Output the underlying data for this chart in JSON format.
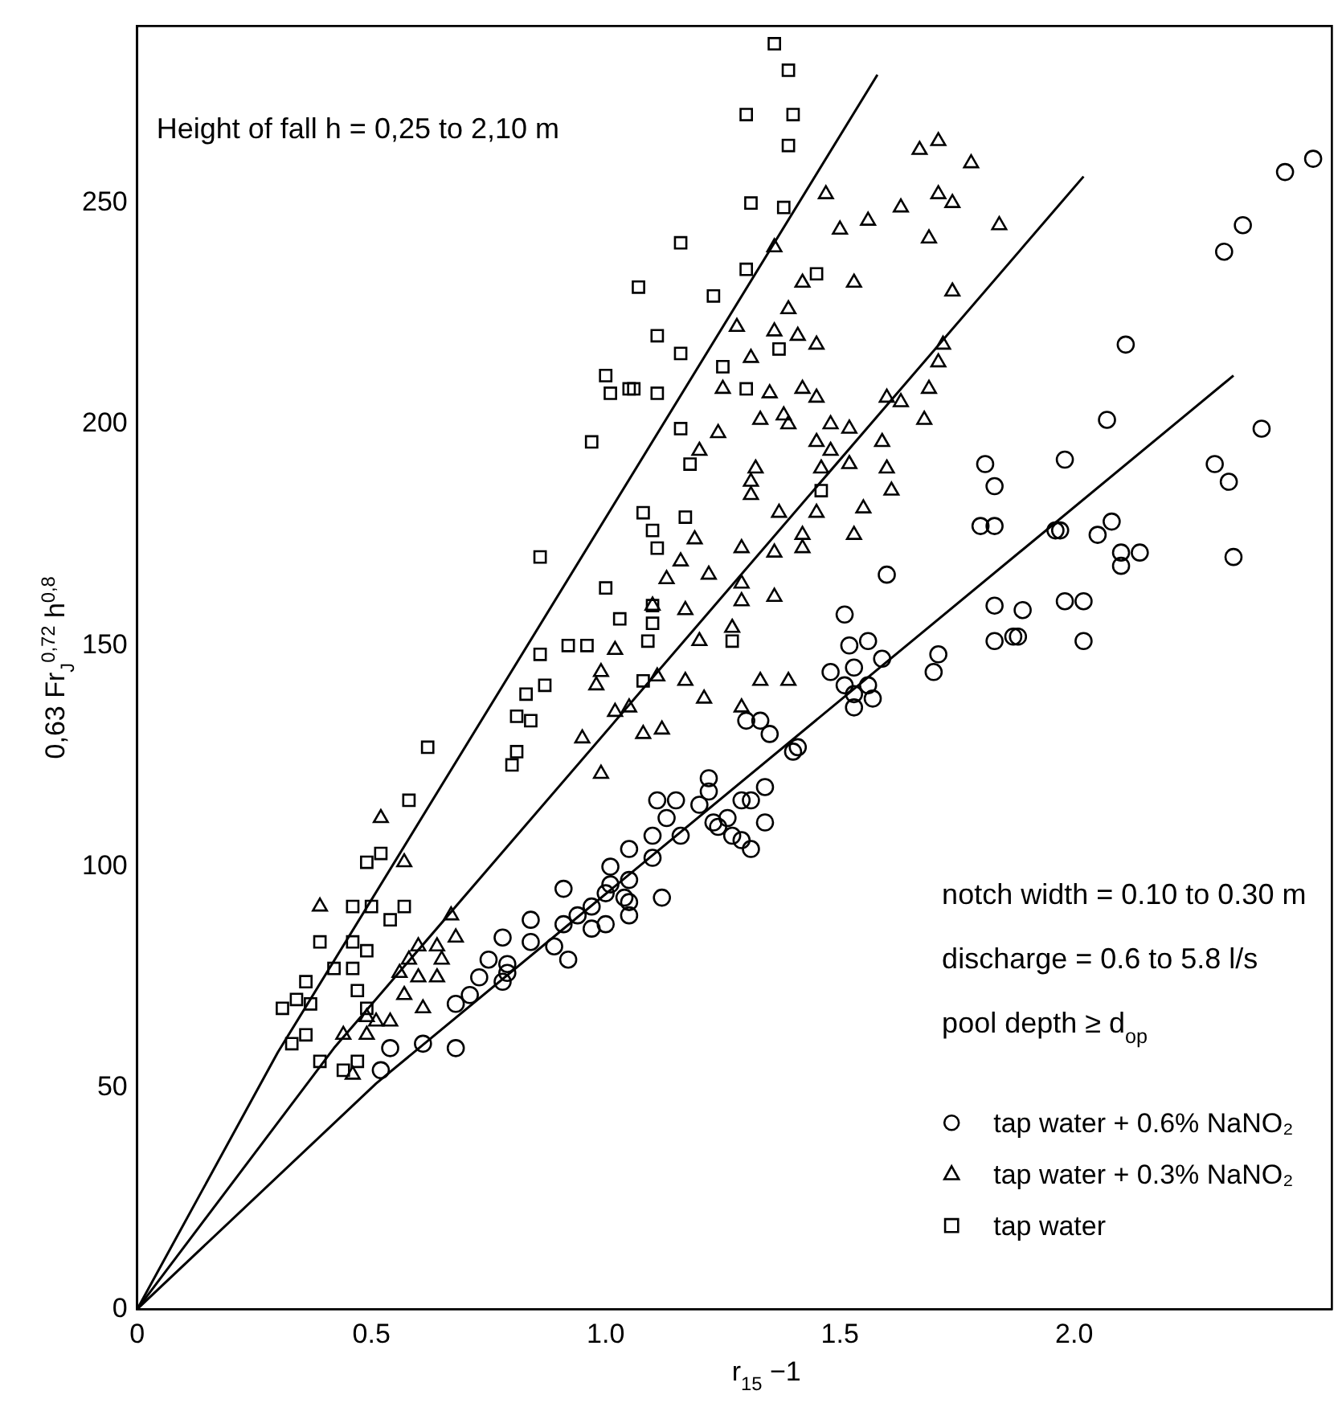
{
  "chart_data": {
    "type": "scatter",
    "xlabel": "r$_{15}$ −1",
    "ylabel": "0,63 Fr$_{J}$$^{0,72}$ h$^{0,8}$",
    "xlim": [
      0,
      2.55
    ],
    "xticks": [
      0,
      0.5,
      {
        "value": 1,
        "label": "1.0"
      },
      1.5,
      {
        "value": 2,
        "label": "2.0"
      }
    ],
    "ylim": [
      0,
      290
    ],
    "yticks": [
      0,
      50,
      100,
      150,
      200,
      250
    ],
    "grid": false,
    "legend": "bottom right",
    "annotations": [
      "Height of fall h = 0,25 to 2,10 m",
      "notch width = 0.10 to 0.30 m",
      "discharge = 0.6 to 5.8 l/s",
      "pool depth ≥ d$_{op}$"
    ],
    "series": [
      {
        "name": "tap water + 0.6% NaNO₂",
        "type": "scatter",
        "marker": "circle",
        "color": "#000000",
        "x": [
          2.51,
          2.45,
          2.36,
          2.32,
          2.11,
          2.07,
          1.98,
          2.4,
          2.3,
          2.33,
          1.97,
          2.08,
          2.05,
          2.1,
          2.14,
          2.1,
          2.34,
          1.98,
          2.02,
          2.02,
          1.89,
          1.88,
          1.81,
          1.83,
          1.8,
          1.83,
          1.96,
          1.6,
          1.83,
          1.87,
          1.83,
          1.51,
          1.52,
          1.56,
          1.59,
          1.71,
          1.7,
          1.48,
          1.53,
          1.51,
          1.56,
          1.53,
          1.57,
          1.53,
          1.3,
          1.33,
          1.35,
          1.41,
          1.4,
          1.22,
          1.22,
          1.11,
          1.15,
          1.2,
          1.29,
          1.31,
          1.34,
          1.1,
          1.16,
          1.23,
          1.26,
          1.34,
          1.29,
          1.13,
          1.31,
          1.27,
          1.24,
          1.12,
          1.05,
          1.1,
          1.05,
          1.01,
          1.0,
          1.05,
          1.01,
          1.05,
          0.91,
          1.0,
          1.04,
          0.97,
          0.94,
          0.97,
          0.84,
          0.91,
          0.84,
          0.89,
          0.78,
          0.92,
          0.75,
          0.79,
          0.73,
          0.78,
          0.79,
          0.71,
          0.68,
          0.61,
          0.68,
          0.54,
          0.52
        ],
        "values": [
          260,
          257,
          245,
          239,
          218,
          201,
          192,
          199,
          191,
          187,
          176,
          178,
          175,
          171,
          171,
          168,
          170,
          160,
          160,
          151,
          158,
          152,
          191,
          186,
          177,
          177,
          176,
          166,
          159,
          152,
          151,
          157,
          150,
          151,
          147,
          148,
          144,
          144,
          145,
          141,
          141,
          139,
          138,
          136,
          133,
          133,
          130,
          127,
          126,
          120,
          117,
          115,
          115,
          114,
          115,
          115,
          118,
          107,
          107,
          110,
          111,
          110,
          106,
          111,
          104,
          107,
          109,
          93,
          89,
          102,
          104,
          96,
          87,
          92,
          100,
          97,
          95,
          94,
          93,
          91,
          89,
          86,
          88,
          87,
          83,
          82,
          84,
          79,
          79,
          78,
          75,
          74,
          76,
          71,
          69,
          60,
          59,
          59,
          54
        ]
      },
      {
        "name": "tap water + 0.3% NaNO₂",
        "type": "scatter",
        "marker": "triangle",
        "color": "#000000",
        "x": [
          1.71,
          1.67,
          1.78,
          1.47,
          1.63,
          1.71,
          1.74,
          1.56,
          1.5,
          1.84,
          1.36,
          1.69,
          1.53,
          1.74,
          1.42,
          1.39,
          1.28,
          1.36,
          1.41,
          1.45,
          1.31,
          1.25,
          1.35,
          1.42,
          1.45,
          1.72,
          1.71,
          1.69,
          1.6,
          1.63,
          1.68,
          1.24,
          1.2,
          1.33,
          1.38,
          1.39,
          1.48,
          1.52,
          1.32,
          1.31,
          1.31,
          1.45,
          1.48,
          1.52,
          1.46,
          1.59,
          1.6,
          1.61,
          1.37,
          1.55,
          1.53,
          1.42,
          1.45,
          1.19,
          1.29,
          1.36,
          1.42,
          1.16,
          1.13,
          1.22,
          1.29,
          1.29,
          1.36,
          1.1,
          1.17,
          1.27,
          1.2,
          1.33,
          1.39,
          1.21,
          1.29,
          1.12,
          1.08,
          1.11,
          1.17,
          1.02,
          0.99,
          0.98,
          1.02,
          1.05,
          0.95,
          0.99,
          0.52,
          0.57,
          0.39,
          0.67,
          0.68,
          0.64,
          0.6,
          0.58,
          0.65,
          0.56,
          0.6,
          0.64,
          0.57,
          0.61,
          0.49,
          0.51,
          0.54,
          0.44,
          0.49,
          0.46
        ],
        "values": [
          264,
          262,
          259,
          252,
          249,
          252,
          250,
          246,
          244,
          245,
          240,
          242,
          232,
          230,
          232,
          226,
          222,
          221,
          220,
          218,
          215,
          208,
          207,
          208,
          206,
          218,
          214,
          208,
          206,
          205,
          201,
          198,
          194,
          201,
          202,
          200,
          200,
          199,
          190,
          187,
          184,
          196,
          194,
          191,
          190,
          196,
          190,
          185,
          180,
          181,
          175,
          175,
          180,
          174,
          172,
          171,
          172,
          169,
          165,
          166,
          164,
          160,
          161,
          159,
          158,
          154,
          151,
          142,
          142,
          138,
          136,
          131,
          130,
          143,
          142,
          149,
          144,
          141,
          135,
          136,
          129,
          121,
          111,
          101,
          91,
          89,
          84,
          82,
          82,
          79,
          79,
          76,
          75,
          75,
          71,
          68,
          66,
          65,
          65,
          62,
          62,
          53
        ]
      },
      {
        "name": "tap water",
        "type": "scatter",
        "marker": "square",
        "color": "#000000",
        "x": [
          1.36,
          1.39,
          1.3,
          1.4,
          1.39,
          1.31,
          1.38,
          1.16,
          1.3,
          1.07,
          1.23,
          1.45,
          1.11,
          1.16,
          1.25,
          1.06,
          1.11,
          1.3,
          1.37,
          1.16,
          1.18,
          1.08,
          1.17,
          1.1,
          1.11,
          1.46,
          1.1,
          1.1,
          1.09,
          1.08,
          1.27,
          1.0,
          1.01,
          1.05,
          0.97,
          0.86,
          0.86,
          0.92,
          0.96,
          0.83,
          0.87,
          0.81,
          0.84,
          0.81,
          0.8,
          0.62,
          0.58,
          0.52,
          0.49,
          0.46,
          0.5,
          0.54,
          0.57,
          0.39,
          0.46,
          0.49,
          0.42,
          0.46,
          0.36,
          0.47,
          0.34,
          0.31,
          0.37,
          0.49,
          0.33,
          0.36,
          0.39,
          0.47,
          0.44,
          1.0,
          1.03
        ],
        "values": [
          286,
          280,
          270,
          270,
          263,
          250,
          249,
          241,
          235,
          231,
          229,
          234,
          220,
          216,
          213,
          208,
          207,
          208,
          217,
          199,
          191,
          180,
          179,
          176,
          172,
          185,
          159,
          155,
          151,
          142,
          151,
          211,
          207,
          208,
          196,
          170,
          148,
          150,
          150,
          139,
          141,
          134,
          133,
          126,
          123,
          127,
          115,
          103,
          101,
          91,
          91,
          88,
          91,
          83,
          83,
          81,
          77,
          77,
          74,
          72,
          70,
          68,
          69,
          68,
          60,
          62,
          56,
          56,
          54,
          163,
          156
        ]
      },
      {
        "type": "line",
        "marker": "none",
        "line_style": "solid",
        "color": "#000000",
        "x": [
          0,
          0.3,
          1.58
        ],
        "values": [
          0,
          58,
          279
        ]
      },
      {
        "type": "line",
        "marker": "none",
        "line_style": "solid",
        "color": "#000000",
        "x": [
          0,
          0.42,
          2.02
        ],
        "values": [
          0,
          59,
          256
        ]
      },
      {
        "type": "line",
        "marker": "none",
        "line_style": "solid",
        "color": "#000000",
        "x": [
          0,
          0.51,
          2.34
        ],
        "values": [
          0,
          51,
          211
        ]
      }
    ]
  }
}
